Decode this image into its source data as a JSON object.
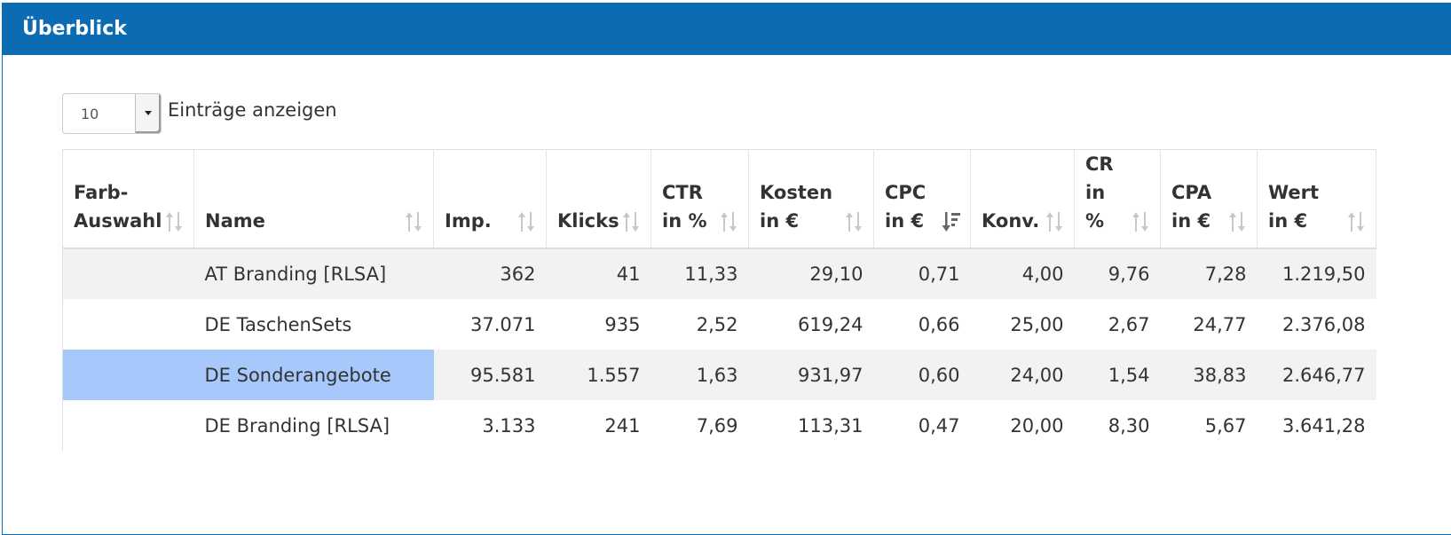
{
  "panel": {
    "title": "Überblick"
  },
  "length": {
    "value": "10",
    "label": "Einträge anzeigen"
  },
  "table": {
    "columns": [
      {
        "label_line1": "Farb-",
        "label_line2": "Auswahl",
        "label_line3": ""
      },
      {
        "label_line1": "",
        "label_line2": "Name",
        "label_line3": ""
      },
      {
        "label_line1": "",
        "label_line2": "Imp.",
        "label_line3": ""
      },
      {
        "label_line1": "",
        "label_line2": "Klicks",
        "label_line3": ""
      },
      {
        "label_line1": "CTR",
        "label_line2": "in %",
        "label_line3": ""
      },
      {
        "label_line1": "Kosten",
        "label_line2": "in €",
        "label_line3": ""
      },
      {
        "label_line1": "CPC",
        "label_line2": "in €",
        "label_line3": ""
      },
      {
        "label_line1": "",
        "label_line2": "Konv.",
        "label_line3": ""
      },
      {
        "label_line1": "CR",
        "label_line2": "in",
        "label_line3": "%"
      },
      {
        "label_line1": "CPA",
        "label_line2": "in €",
        "label_line3": ""
      },
      {
        "label_line1": "Wert",
        "label_line2": "in €",
        "label_line3": ""
      }
    ],
    "sorted_column": "CPC",
    "rows": [
      {
        "color": "",
        "name": "AT Branding [RLSA]",
        "imp": "362",
        "klicks": "41",
        "ctr": "11,33",
        "kosten": "29,10",
        "cpc": "0,71",
        "konv": "4,00",
        "cr": "9,76",
        "cpa": "7,28",
        "wert": "1.219,50"
      },
      {
        "color": "",
        "name": "DE TaschenSets",
        "imp": "37.071",
        "klicks": "935",
        "ctr": "2,52",
        "kosten": "619,24",
        "cpc": "0,66",
        "konv": "25,00",
        "cr": "2,67",
        "cpa": "24,77",
        "wert": "2.376,08"
      },
      {
        "color": "#a6c8fa",
        "name": "DE Sonderangebote",
        "imp": "95.581",
        "klicks": "1.557",
        "ctr": "1,63",
        "kosten": "931,97",
        "cpc": "0,60",
        "konv": "24,00",
        "cr": "1,54",
        "cpa": "38,83",
        "wert": "2.646,77"
      },
      {
        "color": "",
        "name": "DE Branding [RLSA]",
        "imp": "3.133",
        "klicks": "241",
        "ctr": "7,69",
        "kosten": "113,31",
        "cpc": "0,47",
        "konv": "20,00",
        "cr": "8,30",
        "cpa": "5,67",
        "wert": "3.641,28"
      }
    ]
  },
  "colors": {
    "header_blue": "#0b6cb3",
    "highlight_blue": "#a6c8fa",
    "stripe": "#f2f2f2"
  }
}
